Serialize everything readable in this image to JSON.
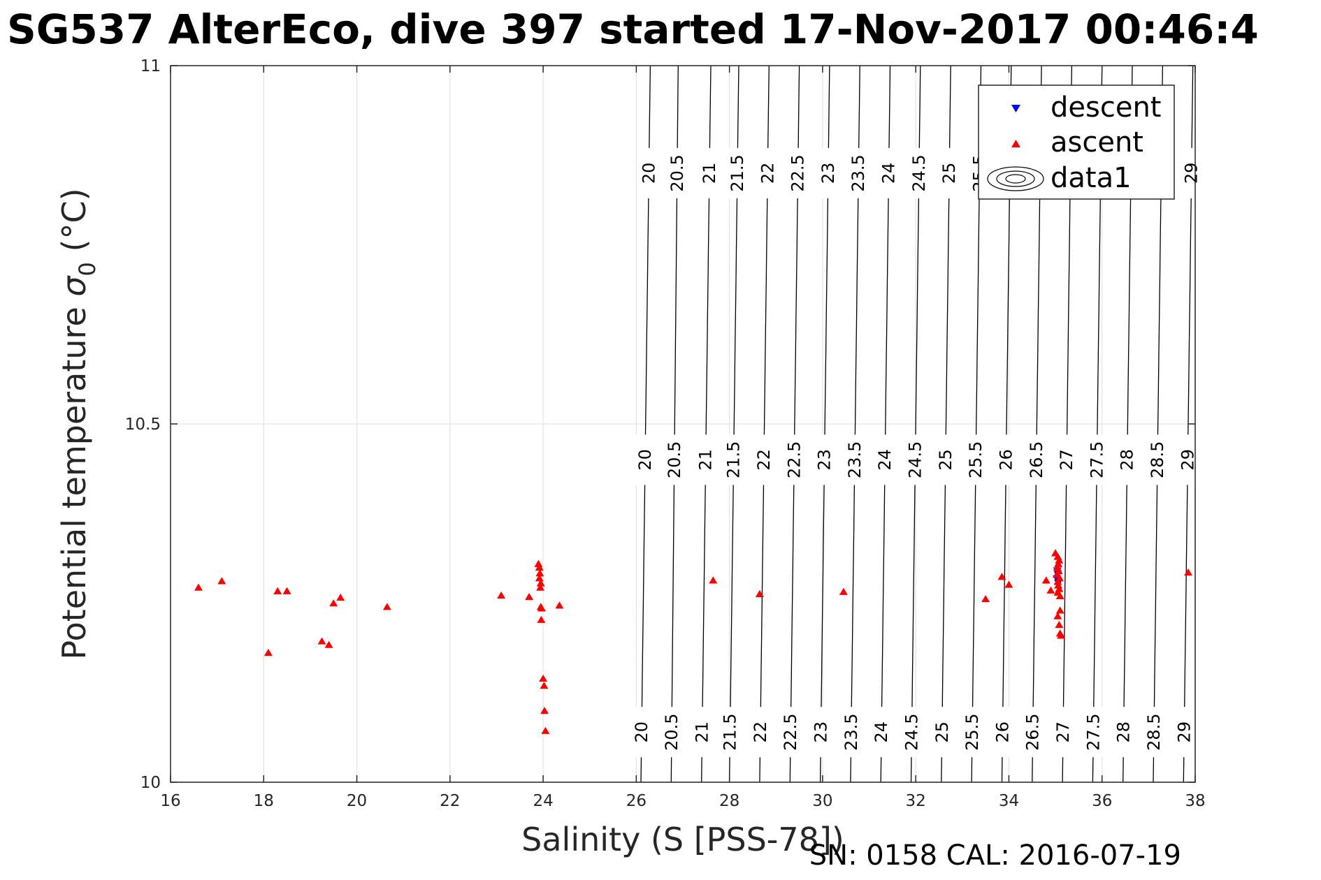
{
  "chart_data": {
    "type": "scatter",
    "title": "SG537 AlterEco, dive 397 started 17-Nov-2017 00:46:4",
    "xlabel": "Salinity (S [PSS-78])",
    "ylabel_main": "Potential temperature ",
    "ylabel_sigma": "σ",
    "ylabel_subscript": "0",
    "ylabel_unit": " (°C)",
    "footer": "SN: 0158  CAL: 2016-07-19",
    "xlim": [
      16,
      38
    ],
    "ylim": [
      10,
      11
    ],
    "xticks": [
      16,
      18,
      20,
      22,
      24,
      26,
      28,
      30,
      32,
      34,
      36,
      38
    ],
    "yticks": [
      10,
      10.5,
      11
    ],
    "xtick_labels": [
      "16",
      "18",
      "20",
      "22",
      "24",
      "26",
      "28",
      "30",
      "32",
      "34",
      "36",
      "38"
    ],
    "ytick_labels": [
      "10",
      "10.5",
      "11"
    ],
    "grid": true,
    "legend": {
      "placement": "top-right",
      "entries": [
        {
          "label": "descent",
          "marker": "triangle-down",
          "color": "#0000ff"
        },
        {
          "label": "ascent",
          "marker": "triangle-up",
          "color": "#ff0000"
        },
        {
          "label": "data1",
          "marker": "contour",
          "color": "#000000"
        }
      ]
    },
    "contours": {
      "color": "#000000",
      "levels": [
        {
          "label": "20",
          "x_bottom": 26.1,
          "x_top": 26.3
        },
        {
          "label": "20.5",
          "x_bottom": 26.75,
          "x_top": 26.9
        },
        {
          "label": "21",
          "x_bottom": 27.4,
          "x_top": 27.6
        },
        {
          "label": "21.5",
          "x_bottom": 28.0,
          "x_top": 28.2
        },
        {
          "label": "22",
          "x_bottom": 28.65,
          "x_top": 28.85
        },
        {
          "label": "22.5",
          "x_bottom": 29.3,
          "x_top": 29.5
        },
        {
          "label": "23",
          "x_bottom": 29.95,
          "x_top": 30.15
        },
        {
          "label": "23.5",
          "x_bottom": 30.6,
          "x_top": 30.8
        },
        {
          "label": "24",
          "x_bottom": 31.25,
          "x_top": 31.45
        },
        {
          "label": "24.5",
          "x_bottom": 31.9,
          "x_top": 32.1
        },
        {
          "label": "25",
          "x_bottom": 32.55,
          "x_top": 32.75
        },
        {
          "label": "25.5",
          "x_bottom": 33.2,
          "x_top": 33.4
        },
        {
          "label": "26",
          "x_bottom": 33.85,
          "x_top": 34.05
        },
        {
          "label": "26.5",
          "x_bottom": 34.5,
          "x_top": 34.7
        },
        {
          "label": "27",
          "x_bottom": 35.15,
          "x_top": 35.35
        },
        {
          "label": "27.5",
          "x_bottom": 35.8,
          "x_top": 36.0
        },
        {
          "label": "28",
          "x_bottom": 36.45,
          "x_top": 36.65
        },
        {
          "label": "28.5",
          "x_bottom": 37.1,
          "x_top": 37.3
        },
        {
          "label": "29",
          "x_bottom": 37.75,
          "x_top": 37.95
        }
      ]
    },
    "series": [
      {
        "name": "descent",
        "marker": "triangle-down",
        "color": "#0000ff",
        "points": [
          [
            35.03,
            10.284
          ],
          [
            35.05,
            10.29
          ],
          [
            35.04,
            10.295
          ],
          [
            35.06,
            10.278
          ]
        ]
      },
      {
        "name": "ascent",
        "marker": "triangle-up",
        "color": "#ff0000",
        "points": [
          [
            16.6,
            10.272
          ],
          [
            17.1,
            10.281
          ],
          [
            18.1,
            10.181
          ],
          [
            18.3,
            10.267
          ],
          [
            18.5,
            10.267
          ],
          [
            19.25,
            10.197
          ],
          [
            19.4,
            10.192
          ],
          [
            19.5,
            10.25
          ],
          [
            19.65,
            10.258
          ],
          [
            20.65,
            10.245
          ],
          [
            23.1,
            10.261
          ],
          [
            23.7,
            10.259
          ],
          [
            23.9,
            10.305
          ],
          [
            23.92,
            10.3
          ],
          [
            23.93,
            10.292
          ],
          [
            23.92,
            10.285
          ],
          [
            23.95,
            10.278
          ],
          [
            23.94,
            10.272
          ],
          [
            23.95,
            10.245
          ],
          [
            23.97,
            10.243
          ],
          [
            23.96,
            10.227
          ],
          [
            24.0,
            10.145
          ],
          [
            24.02,
            10.135
          ],
          [
            24.03,
            10.1
          ],
          [
            24.05,
            10.072
          ],
          [
            24.35,
            10.247
          ],
          [
            27.65,
            10.282
          ],
          [
            28.65,
            10.263
          ],
          [
            30.45,
            10.266
          ],
          [
            33.5,
            10.256
          ],
          [
            33.85,
            10.287
          ],
          [
            34.0,
            10.276
          ],
          [
            34.8,
            10.282
          ],
          [
            34.9,
            10.268
          ],
          [
            35.0,
            10.32
          ],
          [
            35.05,
            10.315
          ],
          [
            35.08,
            10.31
          ],
          [
            35.06,
            10.305
          ],
          [
            35.04,
            10.3
          ],
          [
            35.07,
            10.295
          ],
          [
            35.03,
            10.29
          ],
          [
            35.09,
            10.285
          ],
          [
            35.05,
            10.28
          ],
          [
            35.06,
            10.275
          ],
          [
            35.08,
            10.27
          ],
          [
            35.05,
            10.265
          ],
          [
            35.1,
            10.26
          ],
          [
            35.1,
            10.24
          ],
          [
            35.05,
            10.232
          ],
          [
            35.08,
            10.22
          ],
          [
            35.1,
            10.208
          ],
          [
            35.12,
            10.205
          ],
          [
            37.85,
            10.293
          ]
        ]
      }
    ]
  }
}
